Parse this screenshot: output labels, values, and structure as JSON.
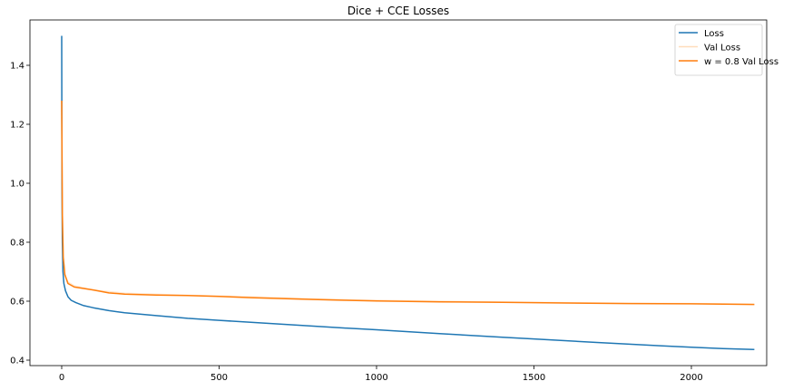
{
  "chart_data": {
    "type": "line",
    "title": "Dice + CCE Losses",
    "xlabel": "",
    "ylabel": "",
    "xlim": [
      -100,
      2300
    ],
    "ylim": [
      0.38,
      1.55
    ],
    "xticks": [
      0,
      500,
      1000,
      1500,
      2000
    ],
    "xtick_labels": [
      "0",
      "500",
      "1000",
      "1500",
      "2000"
    ],
    "yticks": [
      0.4,
      0.6,
      0.8,
      1.0,
      1.2,
      1.4
    ],
    "ytick_labels": [
      "0.4",
      "0.6",
      "0.8",
      "1.0",
      "1.2",
      "1.4"
    ],
    "grid": false,
    "legend_position": "top-right",
    "series": [
      {
        "name": "Loss",
        "color": "#1f77b4",
        "opacity": 1,
        "x": [
          0,
          1,
          2,
          4,
          7,
          12,
          20,
          30,
          45,
          70,
          100,
          150,
          200,
          300,
          400,
          500,
          700,
          900,
          1000,
          1200,
          1400,
          1500,
          1700,
          1900,
          2000,
          2100,
          2200
        ],
        "y": [
          1.5,
          1.0,
          0.8,
          0.7,
          0.66,
          0.635,
          0.615,
          0.603,
          0.595,
          0.585,
          0.578,
          0.568,
          0.561,
          0.551,
          0.542,
          0.535,
          0.522,
          0.509,
          0.503,
          0.49,
          0.478,
          0.472,
          0.46,
          0.449,
          0.444,
          0.439,
          0.436
        ]
      },
      {
        "name": "Val Loss",
        "color": "#ffbb78",
        "opacity": 0.35,
        "x": [
          0,
          2,
          5,
          10,
          20,
          40,
          70,
          100,
          200,
          400,
          600,
          800,
          1000,
          1200,
          1400,
          1600,
          1800,
          2000,
          2200
        ],
        "y": [
          1.28,
          0.9,
          0.75,
          0.69,
          0.665,
          0.652,
          0.645,
          0.638,
          0.627,
          0.62,
          0.615,
          0.608,
          0.603,
          0.6,
          0.597,
          0.595,
          0.593,
          0.592,
          0.59
        ]
      },
      {
        "name": "w = 0.8 Val Loss",
        "color": "#ff7f0e",
        "opacity": 1,
        "x": [
          0,
          2,
          5,
          10,
          20,
          40,
          70,
          100,
          150,
          200,
          300,
          400,
          500,
          600,
          700,
          800,
          900,
          1000,
          1200,
          1400,
          1600,
          1800,
          2000,
          2200
        ],
        "y": [
          1.28,
          0.9,
          0.75,
          0.69,
          0.66,
          0.648,
          0.643,
          0.638,
          0.628,
          0.624,
          0.621,
          0.619,
          0.616,
          0.612,
          0.609,
          0.606,
          0.603,
          0.601,
          0.598,
          0.596,
          0.594,
          0.592,
          0.591,
          0.589
        ]
      }
    ]
  }
}
